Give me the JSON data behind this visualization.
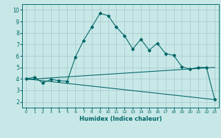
{
  "title": "",
  "xlabel": "Humidex (Indice chaleur)",
  "bg_color": "#c8e8e8",
  "grid_color": "#aacccc",
  "line_color": "#006666",
  "xlim": [
    -0.5,
    23.5
  ],
  "ylim": [
    1.5,
    10.5
  ],
  "xticks": [
    0,
    1,
    2,
    3,
    4,
    5,
    6,
    7,
    8,
    9,
    10,
    11,
    12,
    13,
    14,
    15,
    16,
    17,
    18,
    19,
    20,
    21,
    22,
    23
  ],
  "yticks": [
    2,
    3,
    4,
    5,
    6,
    7,
    8,
    9,
    10
  ],
  "curve1_x": [
    0,
    1,
    2,
    3,
    4,
    5,
    6,
    7,
    8,
    9,
    10,
    11,
    12,
    13,
    14,
    15,
    16,
    17,
    18,
    19,
    20,
    21,
    22,
    23
  ],
  "curve1_y": [
    4.0,
    4.15,
    3.65,
    3.95,
    3.85,
    3.8,
    5.9,
    7.35,
    8.5,
    9.7,
    9.5,
    8.5,
    7.75,
    6.6,
    7.45,
    6.5,
    7.1,
    6.2,
    6.05,
    5.05,
    4.85,
    5.0,
    5.0,
    2.2
  ],
  "curve2_x": [
    0,
    23
  ],
  "curve2_y": [
    3.95,
    5.0
  ],
  "curve3_x": [
    0,
    23
  ],
  "curve3_y": [
    4.0,
    2.2
  ],
  "figsize": [
    3.2,
    2.0
  ],
  "dpi": 100
}
